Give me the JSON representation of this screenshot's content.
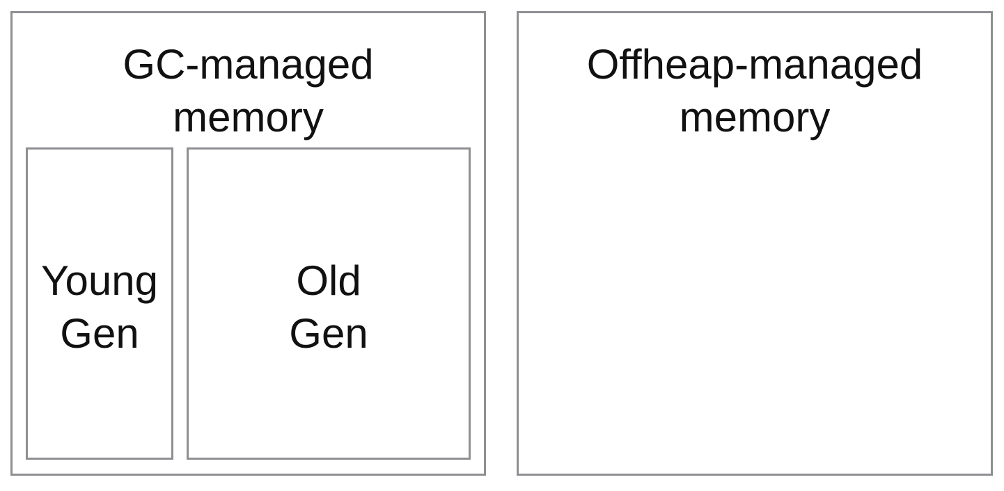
{
  "gc_region": {
    "title_line1": "GC-managed",
    "title_line2": "memory",
    "young": {
      "line1": "Young",
      "line2": "Gen"
    },
    "old": {
      "line1": "Old",
      "line2": "Gen"
    }
  },
  "offheap_region": {
    "title_line1": "Offheap-managed",
    "title_line2": "memory"
  },
  "colors": {
    "border": "#8e8e93",
    "text": "#111111",
    "background": "#ffffff"
  }
}
